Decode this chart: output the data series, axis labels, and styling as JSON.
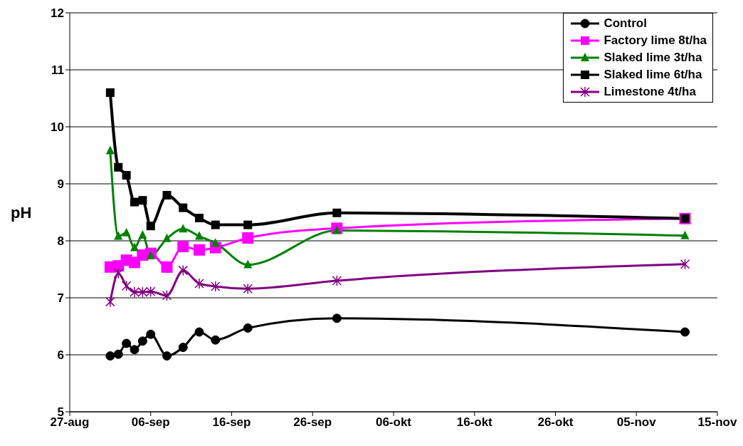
{
  "chart_data": {
    "type": "line",
    "ylabel": "pH",
    "x": [
      "--09-01",
      "--09-02",
      "--09-03",
      "--09-04",
      "--09-05",
      "--09-06",
      "--09-08",
      "--09-10",
      "--09-12",
      "--09-14",
      "--09-18",
      "--09-29",
      "--11-11"
    ],
    "series": [
      {
        "name": "Control",
        "color": "#000000",
        "marker": "circle",
        "values": [
          5.98,
          6.01,
          6.2,
          6.09,
          6.24,
          6.36,
          5.98,
          6.13,
          6.4,
          6.26,
          6.47,
          6.64,
          6.4
        ]
      },
      {
        "name": "Factory lime 8t/ha",
        "color": "#ff00ff",
        "marker": "square",
        "values": [
          7.54,
          7.56,
          7.66,
          7.62,
          7.75,
          7.78,
          7.54,
          7.9,
          7.84,
          7.88,
          8.05,
          8.22,
          8.39
        ]
      },
      {
        "name": "Slaked lime 3t/ha",
        "color": "#008000",
        "marker": "triangle",
        "values": [
          9.58,
          8.08,
          8.14,
          7.88,
          8.1,
          7.74,
          8.04,
          8.21,
          8.08,
          7.96,
          7.58,
          8.18,
          8.09
        ]
      },
      {
        "name": "Slaked lime 6t/ha",
        "color": "#000000",
        "marker": "square",
        "values": [
          10.6,
          9.29,
          9.15,
          8.68,
          8.71,
          8.26,
          8.8,
          8.58,
          8.4,
          8.28,
          8.28,
          8.49,
          8.39
        ]
      },
      {
        "name": "Limestone 4t/ha",
        "color": "#800080",
        "marker": "cross",
        "values": [
          6.93,
          7.43,
          7.21,
          7.1,
          7.1,
          7.11,
          7.04,
          7.48,
          7.25,
          7.2,
          7.16,
          7.3,
          7.59
        ]
      }
    ],
    "xlim": [
      "--08-27",
      "--11-15"
    ],
    "xticks": [
      {
        "value": "--08-27",
        "label": "27-aug"
      },
      {
        "value": "--09-06",
        "label": "06-sep"
      },
      {
        "value": "--09-16",
        "label": "16-sep"
      },
      {
        "value": "--09-26",
        "label": "26-sep"
      },
      {
        "value": "--10-06",
        "label": "06-okt"
      },
      {
        "value": "--10-16",
        "label": "16-okt"
      },
      {
        "value": "--10-26",
        "label": "26-okt"
      },
      {
        "value": "--11-05",
        "label": "05-nov"
      },
      {
        "value": "--11-15",
        "label": "15-nov"
      }
    ],
    "ylim": [
      5,
      12
    ],
    "yticks": [
      5,
      6,
      7,
      8,
      9,
      10,
      11,
      12
    ],
    "grid": "y",
    "legend": "top right",
    "line_style": "solid"
  }
}
